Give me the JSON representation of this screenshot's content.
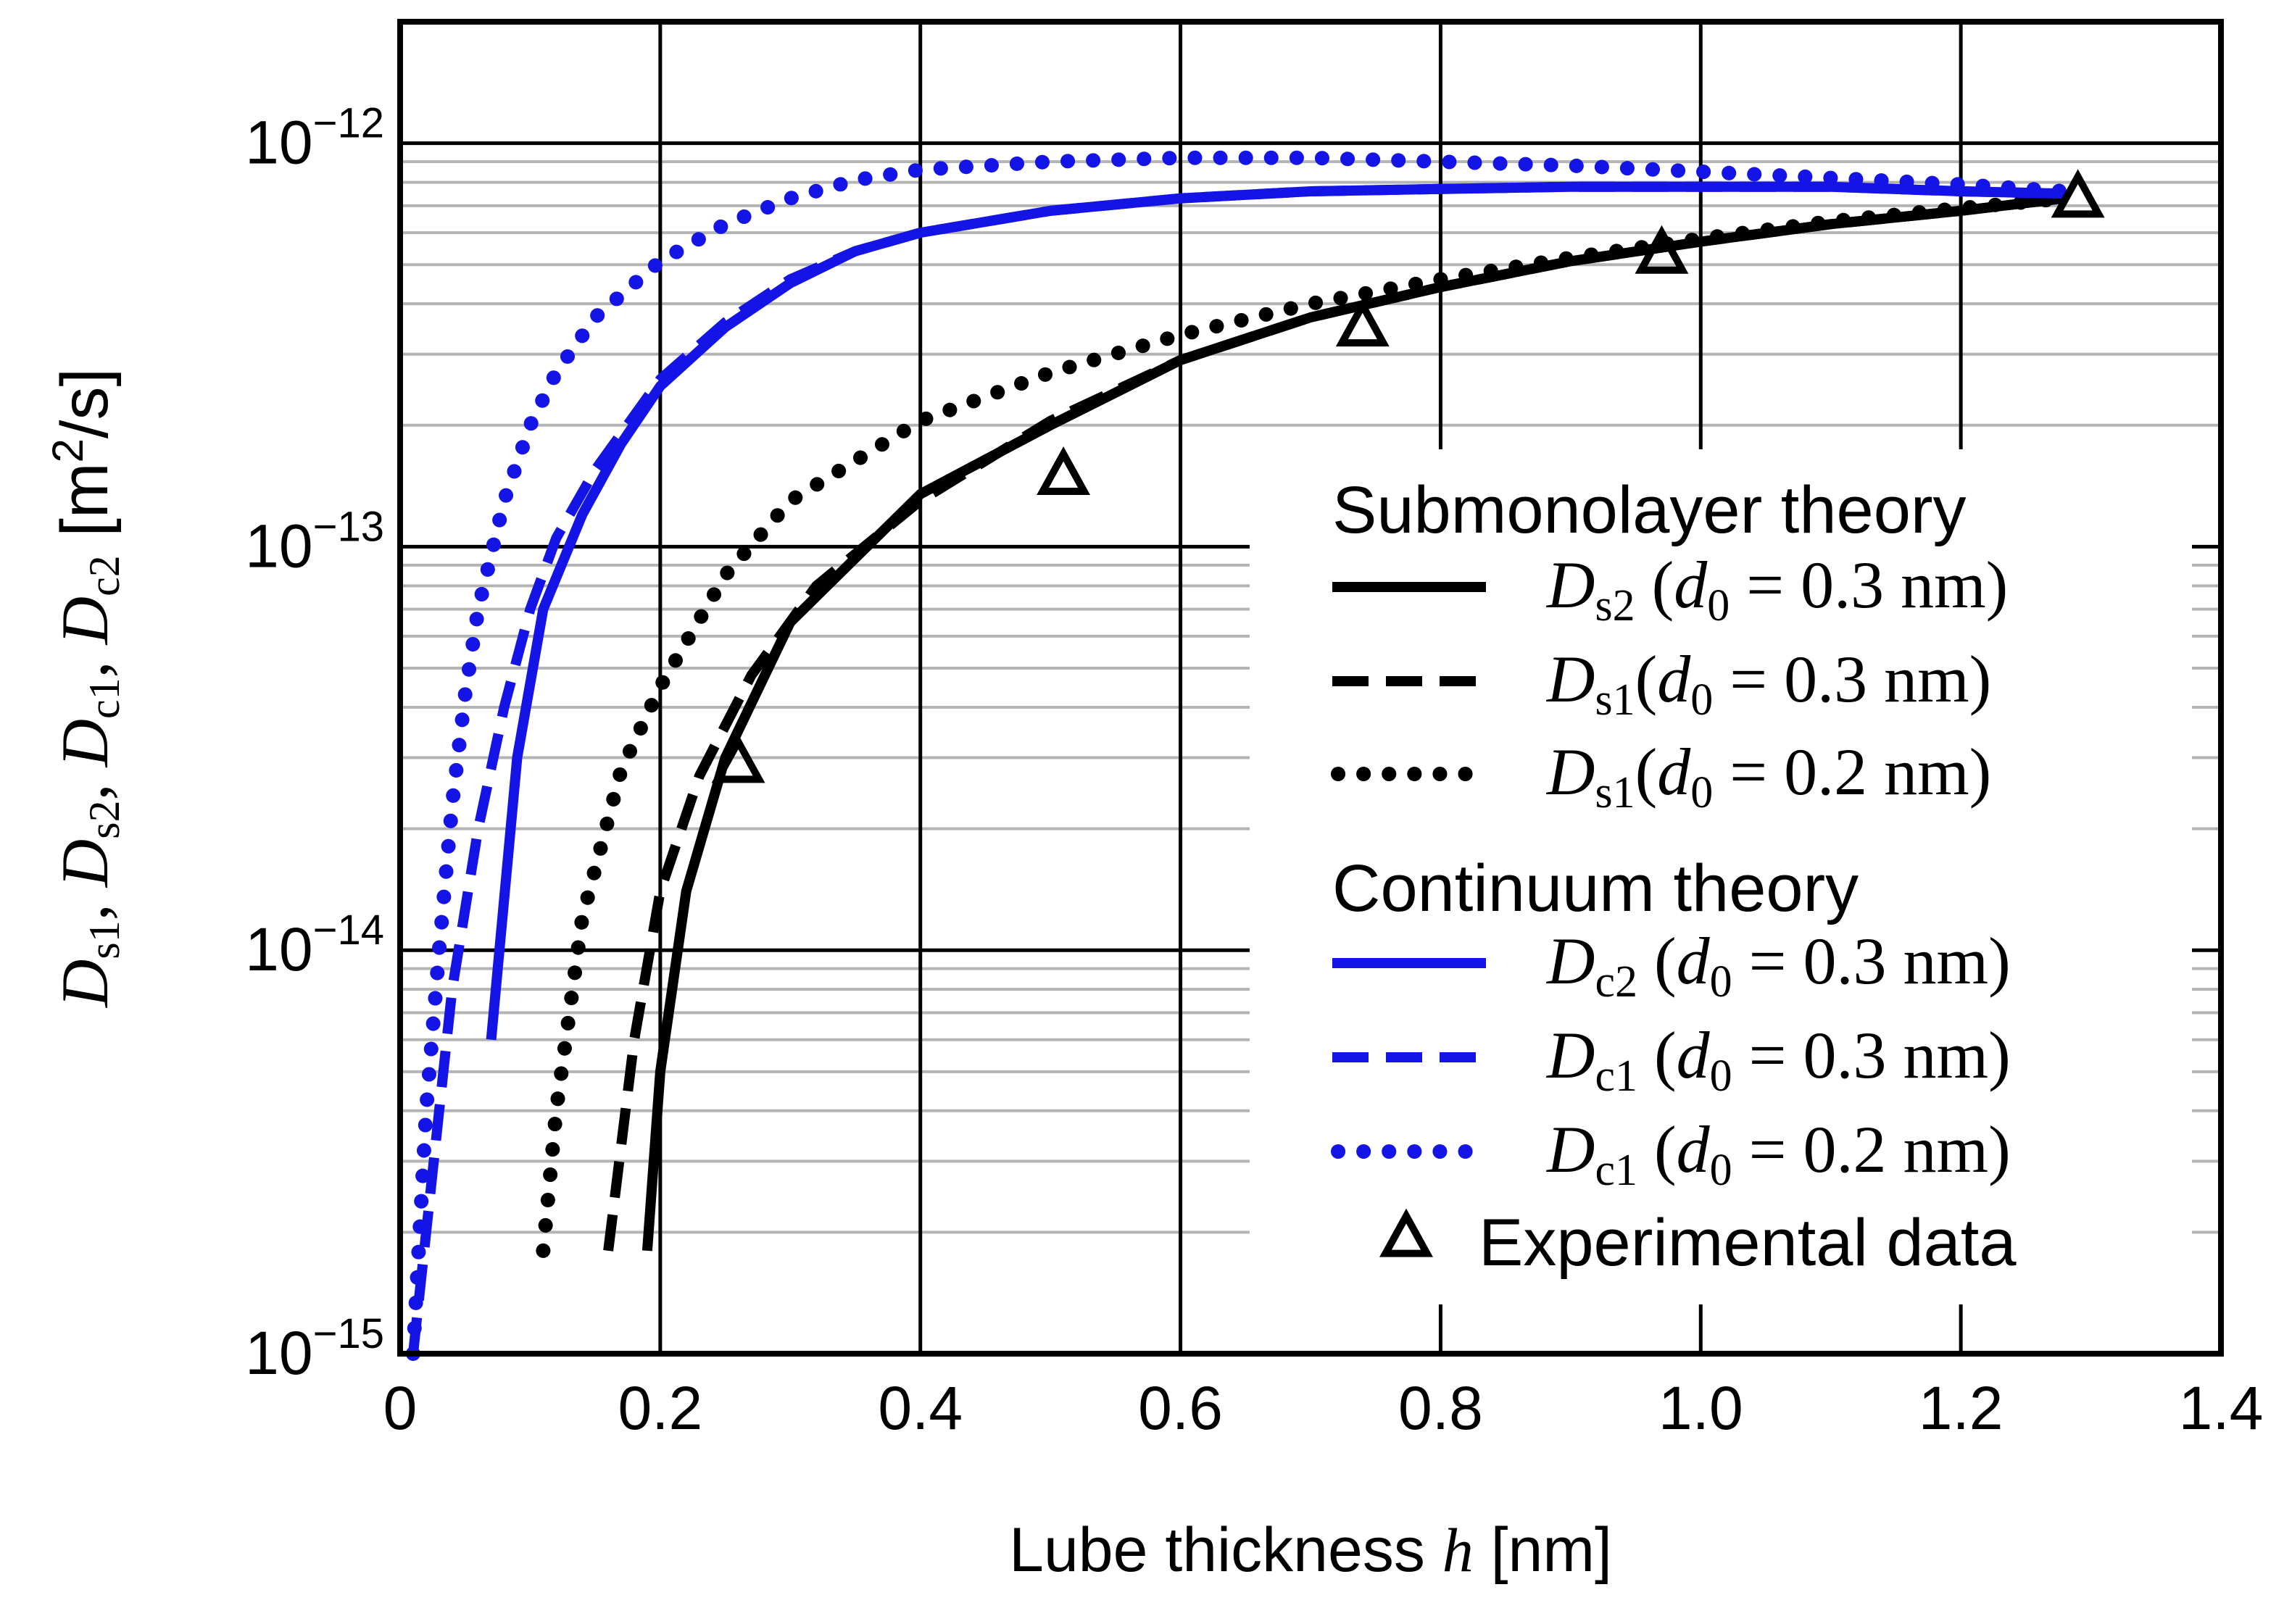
{
  "chart_data": {
    "type": "line",
    "xlabel_prefix": "Lube thickness ",
    "xlabel_var": "h",
    "xlabel_unit": " [nm]",
    "ylabel": "Ds1, Ds2, Dc1, Dc2 [m²/s]",
    "xlim": [
      0,
      1.4
    ],
    "ylim": [
      1e-15,
      2e-12
    ],
    "yscale": "log",
    "grid": true,
    "x_ticks": [
      {
        "value": 0,
        "label": "0"
      },
      {
        "value": 0.2,
        "label": "0.2"
      },
      {
        "value": 0.4,
        "label": "0.4"
      },
      {
        "value": 0.6,
        "label": "0.6"
      },
      {
        "value": 0.8,
        "label": "0.8"
      },
      {
        "value": 1.0,
        "label": "1.0"
      },
      {
        "value": 1.2,
        "label": "1.2"
      },
      {
        "value": 1.4,
        "label": "1.4"
      }
    ],
    "y_ticks": [
      {
        "value": 1e-15,
        "base": "10",
        "exp": "−15"
      },
      {
        "value": 1e-14,
        "base": "10",
        "exp": "−14"
      },
      {
        "value": 1e-13,
        "base": "10",
        "exp": "−13"
      },
      {
        "value": 1e-12,
        "base": "10",
        "exp": "−12"
      }
    ],
    "legend": {
      "position": "bottom-right",
      "group1_title": "Submonolayer theory",
      "group2_title": "Continuum theory",
      "experimental_label": "Experimental data"
    },
    "series": [
      {
        "name": "Ds2 (d0 = 0.3 nm)",
        "sym": "D",
        "sub": "s2",
        "gap": true,
        "rest": " = 0.3 nm)",
        "color": "#000000",
        "style": "solid",
        "points": [
          [
            0.19,
            1.8e-15
          ],
          [
            0.2,
            5e-15
          ],
          [
            0.22,
            1.4e-14
          ],
          [
            0.25,
            3e-14
          ],
          [
            0.3,
            6.5e-14
          ],
          [
            0.4,
            1.35e-13
          ],
          [
            0.5,
            2e-13
          ],
          [
            0.6,
            2.9e-13
          ],
          [
            0.7,
            3.7e-13
          ],
          [
            0.8,
            4.4e-13
          ],
          [
            0.9,
            5.1e-13
          ],
          [
            1.0,
            5.7e-13
          ],
          [
            1.1,
            6.3e-13
          ],
          [
            1.2,
            6.8e-13
          ],
          [
            1.28,
            7.3e-13
          ]
        ]
      },
      {
        "name": "Ds1 (d0 = 0.3 nm)",
        "sym": "D",
        "sub": "s1",
        "gap": false,
        "rest": " = 0.3 nm)",
        "color": "#000000",
        "style": "dashed",
        "points": [
          [
            0.16,
            1.8e-15
          ],
          [
            0.18,
            6e-15
          ],
          [
            0.2,
            1.4e-14
          ],
          [
            0.23,
            2.7e-14
          ],
          [
            0.27,
            4.8e-14
          ],
          [
            0.32,
            8e-14
          ],
          [
            0.4,
            1.3e-13
          ],
          [
            0.5,
            2.05e-13
          ],
          [
            0.6,
            2.9e-13
          ],
          [
            0.7,
            3.7e-13
          ],
          [
            0.8,
            4.4e-13
          ],
          [
            0.9,
            5.1e-13
          ],
          [
            1.0,
            5.7e-13
          ],
          [
            1.1,
            6.3e-13
          ],
          [
            1.2,
            6.8e-13
          ],
          [
            1.28,
            7.3e-13
          ]
        ]
      },
      {
        "name": "Ds1 (d0 = 0.2 nm)",
        "sym": "D",
        "sub": "s1",
        "gap": false,
        "rest": " = 0.2 nm)",
        "color": "#000000",
        "style": "dotted",
        "points": [
          [
            0.11,
            1.8e-15
          ],
          [
            0.12,
            4e-15
          ],
          [
            0.14,
            1.2e-14
          ],
          [
            0.17,
            2.8e-14
          ],
          [
            0.2,
            4.5e-14
          ],
          [
            0.25,
            8.5e-14
          ],
          [
            0.3,
            1.3e-13
          ],
          [
            0.4,
            2.05e-13
          ],
          [
            0.5,
            2.7e-13
          ],
          [
            0.6,
            3.35e-13
          ],
          [
            0.7,
            4e-13
          ],
          [
            0.8,
            4.6e-13
          ],
          [
            0.9,
            5.2e-13
          ],
          [
            1.0,
            5.8e-13
          ],
          [
            1.1,
            6.4e-13
          ],
          [
            1.2,
            6.9e-13
          ],
          [
            1.28,
            7.3e-13
          ]
        ]
      },
      {
        "name": "Dc2 (d0 = 0.3 nm)",
        "sym": "D",
        "sub": "c2",
        "gap": true,
        "rest": " = 0.3 nm)",
        "color": "#1414e6",
        "style": "solid",
        "points": [
          [
            0.07,
            6e-15
          ],
          [
            0.09,
            3e-14
          ],
          [
            0.11,
            7e-14
          ],
          [
            0.14,
            1.2e-13
          ],
          [
            0.17,
            1.8e-13
          ],
          [
            0.2,
            2.5e-13
          ],
          [
            0.25,
            3.5e-13
          ],
          [
            0.3,
            4.5e-13
          ],
          [
            0.35,
            5.4e-13
          ],
          [
            0.4,
            6e-13
          ],
          [
            0.5,
            6.8e-13
          ],
          [
            0.6,
            7.3e-13
          ],
          [
            0.7,
            7.6e-13
          ],
          [
            0.8,
            7.7e-13
          ],
          [
            0.9,
            7.8e-13
          ],
          [
            1.0,
            7.8e-13
          ],
          [
            1.1,
            7.8e-13
          ],
          [
            1.2,
            7.6e-13
          ],
          [
            1.28,
            7.5e-13
          ]
        ]
      },
      {
        "name": "Dc1 (d0 = 0.3 nm)",
        "sym": "D",
        "sub": "c1",
        "gap": true,
        "rest": " = 0.3 nm)",
        "color": "#1414e6",
        "style": "dashed",
        "points": [
          [
            0.01,
            1e-15
          ],
          [
            0.02,
            2e-15
          ],
          [
            0.04,
            8e-15
          ],
          [
            0.06,
            2e-14
          ],
          [
            0.08,
            4e-14
          ],
          [
            0.1,
            7e-14
          ],
          [
            0.12,
            1.05e-13
          ],
          [
            0.15,
            1.55e-13
          ],
          [
            0.2,
            2.6e-13
          ],
          [
            0.25,
            3.6e-13
          ],
          [
            0.3,
            4.6e-13
          ],
          [
            0.35,
            5.4e-13
          ],
          [
            0.4,
            6e-13
          ],
          [
            0.5,
            6.8e-13
          ],
          [
            0.6,
            7.3e-13
          ],
          [
            0.7,
            7.6e-13
          ],
          [
            0.8,
            7.7e-13
          ],
          [
            0.9,
            7.8e-13
          ],
          [
            1.0,
            7.8e-13
          ],
          [
            1.1,
            7.8e-13
          ],
          [
            1.2,
            7.6e-13
          ],
          [
            1.28,
            7.5e-13
          ]
        ]
      },
      {
        "name": "Dc1 (d0 = 0.2 nm)",
        "sym": "D",
        "sub": "c1",
        "gap": true,
        "rest": " = 0.2 nm)",
        "color": "#1414e6",
        "style": "dotted",
        "points": [
          [
            0.01,
            1e-15
          ],
          [
            0.015,
            2e-15
          ],
          [
            0.02,
            4e-15
          ],
          [
            0.03,
            1e-14
          ],
          [
            0.04,
            2.3e-14
          ],
          [
            0.05,
            4.3e-14
          ],
          [
            0.06,
            7e-14
          ],
          [
            0.08,
            1.3e-13
          ],
          [
            0.1,
            2e-13
          ],
          [
            0.12,
            2.7e-13
          ],
          [
            0.15,
            3.7e-13
          ],
          [
            0.2,
            5.1e-13
          ],
          [
            0.25,
            6.3e-13
          ],
          [
            0.3,
            7.3e-13
          ],
          [
            0.35,
            8.1e-13
          ],
          [
            0.4,
            8.6e-13
          ],
          [
            0.5,
            9e-13
          ],
          [
            0.6,
            9.2e-13
          ],
          [
            0.7,
            9.2e-13
          ],
          [
            0.8,
            9e-13
          ],
          [
            0.9,
            8.8e-13
          ],
          [
            1.0,
            8.5e-13
          ],
          [
            1.1,
            8.2e-13
          ],
          [
            1.2,
            7.9e-13
          ],
          [
            1.28,
            7.6e-13
          ]
        ]
      }
    ],
    "experimental": {
      "name": "Experimental data",
      "x": [
        0.26,
        0.51,
        0.74,
        0.97,
        1.29
      ],
      "y": [
        2.9e-14,
        1.5e-13,
        3.5e-13,
        5.3e-13,
        7.3e-13
      ]
    }
  }
}
